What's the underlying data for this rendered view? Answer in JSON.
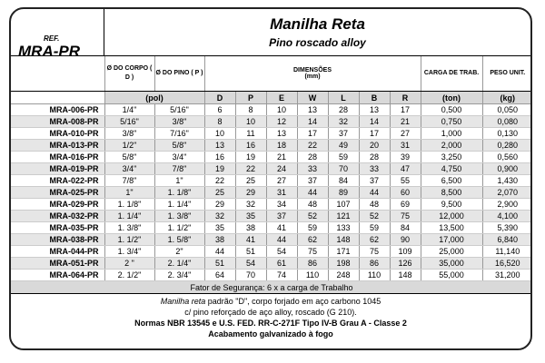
{
  "header": {
    "ref_small": "REF.",
    "ref_big": "MRA-PR",
    "title": "Manilha Reta",
    "subtitle": "Pino roscado alloy"
  },
  "columns": {
    "corpo": "Ø DO CORPO ( D )",
    "pino": "Ø DO PINO ( P )",
    "dimensoes": "DIMENSÕES",
    "dimensoes_unit": "(mm)",
    "carga": "CARGA DE TRAB.",
    "peso": "PESO UNIT."
  },
  "units": {
    "pol": "(pol)",
    "D": "D",
    "P": "P",
    "E": "E",
    "W": "W",
    "L": "L",
    "B": "B",
    "R": "R",
    "ton": "(ton)",
    "kg": "(kg)"
  },
  "rows": [
    [
      "MRA-006-PR",
      "1/4\"",
      "5/16\"",
      "6",
      "8",
      "10",
      "13",
      "28",
      "13",
      "17",
      "0,500",
      "0,050"
    ],
    [
      "MRA-008-PR",
      "5/16\"",
      "3/8\"",
      "8",
      "10",
      "12",
      "14",
      "32",
      "14",
      "21",
      "0,750",
      "0,080"
    ],
    [
      "MRA-010-PR",
      "3/8\"",
      "7/16\"",
      "10",
      "11",
      "13",
      "17",
      "37",
      "17",
      "27",
      "1,000",
      "0,130"
    ],
    [
      "MRA-013-PR",
      "1/2\"",
      "5/8\"",
      "13",
      "16",
      "18",
      "22",
      "49",
      "20",
      "31",
      "2,000",
      "0,280"
    ],
    [
      "MRA-016-PR",
      "5/8\"",
      "3/4\"",
      "16",
      "19",
      "21",
      "28",
      "59",
      "28",
      "39",
      "3,250",
      "0,560"
    ],
    [
      "MRA-019-PR",
      "3/4\"",
      "7/8\"",
      "19",
      "22",
      "24",
      "33",
      "70",
      "33",
      "47",
      "4,750",
      "0,900"
    ],
    [
      "MRA-022-PR",
      "7/8\"",
      "1\"",
      "22",
      "25",
      "27",
      "37",
      "84",
      "37",
      "55",
      "6,500",
      "1,430"
    ],
    [
      "MRA-025-PR",
      "1\"",
      "1. 1/8\"",
      "25",
      "29",
      "31",
      "44",
      "89",
      "44",
      "60",
      "8,500",
      "2,070"
    ],
    [
      "MRA-029-PR",
      "1. 1/8\"",
      "1. 1/4\"",
      "29",
      "32",
      "34",
      "48",
      "107",
      "48",
      "69",
      "9,500",
      "2,900"
    ],
    [
      "MRA-032-PR",
      "1. 1/4\"",
      "1. 3/8\"",
      "32",
      "35",
      "37",
      "52",
      "121",
      "52",
      "75",
      "12,000",
      "4,100"
    ],
    [
      "MRA-035-PR",
      "1. 3/8\"",
      "1. 1/2\"",
      "35",
      "38",
      "41",
      "59",
      "133",
      "59",
      "84",
      "13,500",
      "5,390"
    ],
    [
      "MRA-038-PR",
      "1. 1/2\"",
      "1. 5/8\"",
      "38",
      "41",
      "44",
      "62",
      "148",
      "62",
      "90",
      "17,000",
      "6,840"
    ],
    [
      "MRA-044-PR",
      "1. 3/4\"",
      "2\"",
      "44",
      "51",
      "54",
      "75",
      "171",
      "75",
      "109",
      "25,000",
      "11,140"
    ],
    [
      "MRA-051-PR",
      "2 \"",
      "2. 1/4\"",
      "51",
      "54",
      "61",
      "86",
      "198",
      "86",
      "126",
      "35,000",
      "16,520"
    ],
    [
      "MRA-064-PR",
      "2. 1/2\"",
      "2. 3/4\"",
      "64",
      "70",
      "74",
      "110",
      "248",
      "110",
      "148",
      "55,000",
      "31,200"
    ]
  ],
  "safety": "Fator de Segurança: 6 x a carga de Trabalho",
  "footer": {
    "line1_italic": "Manilha reta",
    "line1_rest": " padrão \"D\", corpo forjado em aço carbono 1045",
    "line2": "c/ pino reforçado de aço alloy, roscado (G 210).",
    "line3": "Normas NBR 13545 e U.S. FED. RR-C-271F Tipo IV-B Grau A - Classe 2",
    "line4": "Acabamento galvanizado à fogo"
  }
}
